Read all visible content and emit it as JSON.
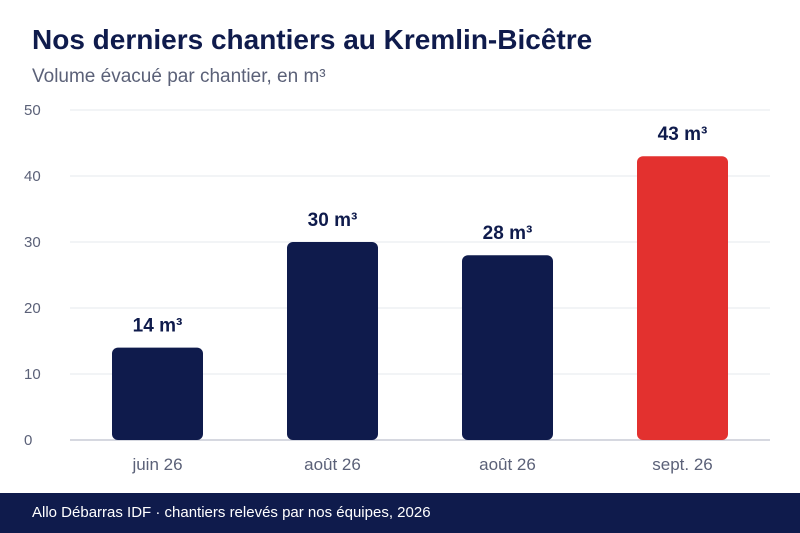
{
  "header": {
    "title": "Nos derniers chantiers au Kremlin-Bicêtre",
    "subtitle": "Volume évacué par chantier, en m³"
  },
  "footer": {
    "text": "Allo Débarras IDF · chantiers relevés par nos équipes, 2026"
  },
  "colors": {
    "primary": "#0f1b4c",
    "highlight": "#e3312f",
    "grid": "#e6e8ee",
    "axis_text": "#5b6178"
  },
  "chart_data": {
    "type": "bar",
    "categories": [
      "juin 26",
      "août 26",
      "août 26",
      "sept. 26"
    ],
    "values": [
      14,
      30,
      28,
      43
    ],
    "data_labels": [
      "14 m³",
      "30 m³",
      "28 m³",
      "43 m³"
    ],
    "highlight_index": 3,
    "ylim": [
      0,
      50
    ],
    "yticks": [
      0,
      10,
      20,
      30,
      40,
      50
    ],
    "grid": true,
    "legend": "none"
  }
}
